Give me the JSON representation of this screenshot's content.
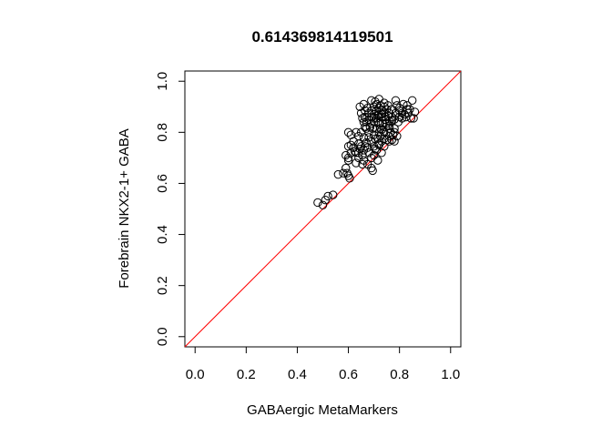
{
  "chart_data": {
    "type": "scatter",
    "title": "0.614369814119501",
    "xlabel": "GABAergic MetaMarkers",
    "ylabel": "Forebrain NKX2-1+ GABA",
    "xlim": [
      -0.04,
      1.04
    ],
    "ylim": [
      -0.04,
      1.04
    ],
    "xticks": [
      "0.0",
      "0.2",
      "0.4",
      "0.6",
      "0.8",
      "1.0"
    ],
    "yticks": [
      "0.0",
      "0.2",
      "0.4",
      "0.6",
      "0.8",
      "1.0"
    ],
    "point_style": "open circle",
    "reference_line": {
      "type": "identity",
      "slope": 1,
      "intercept": 0,
      "color": "#ff0000"
    },
    "legend": "none",
    "grid": false,
    "points": [
      [
        0.48,
        0.525
      ],
      [
        0.5,
        0.515
      ],
      [
        0.51,
        0.535
      ],
      [
        0.52,
        0.55
      ],
      [
        0.54,
        0.555
      ],
      [
        0.56,
        0.635
      ],
      [
        0.58,
        0.64
      ],
      [
        0.59,
        0.66
      ],
      [
        0.595,
        0.64
      ],
      [
        0.6,
        0.63
      ],
      [
        0.605,
        0.62
      ],
      [
        0.6,
        0.69
      ],
      [
        0.59,
        0.71
      ],
      [
        0.6,
        0.745
      ],
      [
        0.61,
        0.75
      ],
      [
        0.62,
        0.74
      ],
      [
        0.625,
        0.725
      ],
      [
        0.63,
        0.72
      ],
      [
        0.64,
        0.72
      ],
      [
        0.645,
        0.735
      ],
      [
        0.65,
        0.745
      ],
      [
        0.66,
        0.73
      ],
      [
        0.665,
        0.745
      ],
      [
        0.67,
        0.76
      ],
      [
        0.66,
        0.78
      ],
      [
        0.65,
        0.8
      ],
      [
        0.63,
        0.8
      ],
      [
        0.61,
        0.79
      ],
      [
        0.6,
        0.8
      ],
      [
        0.62,
        0.765
      ],
      [
        0.64,
        0.755
      ],
      [
        0.68,
        0.72
      ],
      [
        0.69,
        0.7
      ],
      [
        0.7,
        0.71
      ],
      [
        0.71,
        0.73
      ],
      [
        0.7,
        0.745
      ],
      [
        0.72,
        0.75
      ],
      [
        0.73,
        0.765
      ],
      [
        0.74,
        0.775
      ],
      [
        0.75,
        0.77
      ],
      [
        0.76,
        0.765
      ],
      [
        0.77,
        0.77
      ],
      [
        0.775,
        0.79
      ],
      [
        0.78,
        0.765
      ],
      [
        0.74,
        0.8
      ],
      [
        0.72,
        0.8
      ],
      [
        0.7,
        0.79
      ],
      [
        0.68,
        0.8
      ],
      [
        0.67,
        0.815
      ],
      [
        0.66,
        0.84
      ],
      [
        0.665,
        0.86
      ],
      [
        0.68,
        0.85
      ],
      [
        0.69,
        0.835
      ],
      [
        0.7,
        0.84
      ],
      [
        0.71,
        0.855
      ],
      [
        0.72,
        0.835
      ],
      [
        0.725,
        0.815
      ],
      [
        0.735,
        0.835
      ],
      [
        0.745,
        0.85
      ],
      [
        0.75,
        0.835
      ],
      [
        0.76,
        0.825
      ],
      [
        0.77,
        0.845
      ],
      [
        0.755,
        0.865
      ],
      [
        0.74,
        0.875
      ],
      [
        0.73,
        0.885
      ],
      [
        0.72,
        0.87
      ],
      [
        0.71,
        0.885
      ],
      [
        0.7,
        0.9
      ],
      [
        0.69,
        0.885
      ],
      [
        0.68,
        0.875
      ],
      [
        0.665,
        0.885
      ],
      [
        0.65,
        0.875
      ],
      [
        0.645,
        0.9
      ],
      [
        0.66,
        0.91
      ],
      [
        0.69,
        0.925
      ],
      [
        0.71,
        0.91
      ],
      [
        0.725,
        0.905
      ],
      [
        0.74,
        0.9
      ],
      [
        0.755,
        0.905
      ],
      [
        0.77,
        0.89
      ],
      [
        0.785,
        0.875
      ],
      [
        0.8,
        0.86
      ],
      [
        0.81,
        0.875
      ],
      [
        0.82,
        0.87
      ],
      [
        0.835,
        0.875
      ],
      [
        0.845,
        0.855
      ],
      [
        0.855,
        0.855
      ],
      [
        0.83,
        0.89
      ],
      [
        0.8,
        0.895
      ],
      [
        0.79,
        0.905
      ],
      [
        0.815,
        0.91
      ],
      [
        0.83,
        0.905
      ],
      [
        0.85,
        0.925
      ],
      [
        0.86,
        0.88
      ],
      [
        0.785,
        0.925
      ],
      [
        0.72,
        0.93
      ],
      [
        0.705,
        0.92
      ],
      [
        0.69,
        0.86
      ],
      [
        0.7,
        0.87
      ],
      [
        0.715,
        0.865
      ],
      [
        0.73,
        0.86
      ],
      [
        0.745,
        0.82
      ],
      [
        0.76,
        0.815
      ],
      [
        0.78,
        0.815
      ],
      [
        0.795,
        0.84
      ],
      [
        0.81,
        0.855
      ],
      [
        0.76,
        0.845
      ],
      [
        0.68,
        0.78
      ],
      [
        0.69,
        0.765
      ],
      [
        0.705,
        0.775
      ],
      [
        0.715,
        0.775
      ],
      [
        0.725,
        0.785
      ],
      [
        0.675,
        0.74
      ],
      [
        0.655,
        0.71
      ],
      [
        0.66,
        0.69
      ],
      [
        0.675,
        0.675
      ],
      [
        0.69,
        0.66
      ],
      [
        0.695,
        0.65
      ],
      [
        0.715,
        0.69
      ],
      [
        0.73,
        0.72
      ],
      [
        0.64,
        0.7
      ],
      [
        0.63,
        0.68
      ],
      [
        0.655,
        0.675
      ],
      [
        0.665,
        0.82
      ],
      [
        0.67,
        0.84
      ],
      [
        0.655,
        0.855
      ],
      [
        0.675,
        0.895
      ],
      [
        0.7,
        0.855
      ],
      [
        0.71,
        0.815
      ],
      [
        0.73,
        0.81
      ],
      [
        0.745,
        0.86
      ],
      [
        0.76,
        0.875
      ],
      [
        0.77,
        0.86
      ],
      [
        0.78,
        0.85
      ],
      [
        0.8,
        0.885
      ],
      [
        0.825,
        0.86
      ],
      [
        0.84,
        0.89
      ],
      [
        0.72,
        0.895
      ],
      [
        0.74,
        0.915
      ],
      [
        0.75,
        0.89
      ],
      [
        0.73,
        0.87
      ],
      [
        0.715,
        0.84
      ],
      [
        0.695,
        0.815
      ],
      [
        0.685,
        0.82
      ],
      [
        0.64,
        0.785
      ],
      [
        0.62,
        0.74
      ],
      [
        0.61,
        0.72
      ],
      [
        0.6,
        0.7
      ],
      [
        0.705,
        0.735
      ],
      [
        0.72,
        0.755
      ],
      [
        0.74,
        0.745
      ],
      [
        0.76,
        0.785
      ],
      [
        0.79,
        0.785
      ],
      [
        0.78,
        0.8
      ],
      [
        0.765,
        0.8
      ]
    ]
  }
}
